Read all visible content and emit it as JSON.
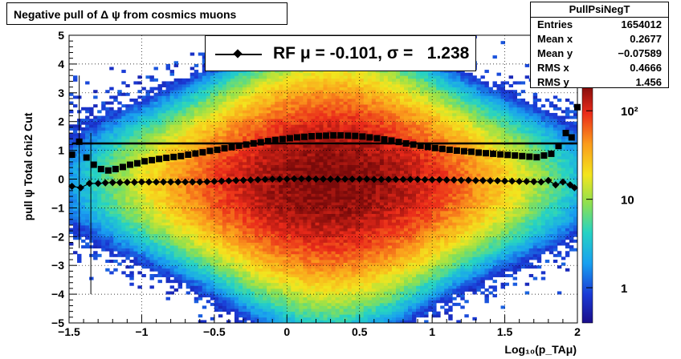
{
  "title": "Negative pull of Δ ψ from cosmics muons",
  "stats": {
    "name": "PullPsiNegT",
    "rows": [
      {
        "label": "Entries",
        "value": "1654012"
      },
      {
        "label": "Mean x",
        "value": "0.2677"
      },
      {
        "label": "Mean y",
        "value": "−0.07589"
      },
      {
        "label": "RMS x",
        "value": "0.4666"
      },
      {
        "label": "RMS y",
        "value": "1.456"
      }
    ]
  },
  "legend": {
    "label": "RF μ = -0.101, σ =   1.238"
  },
  "colorbar": {
    "min": 0.4,
    "max": 200,
    "log": true,
    "tick_labels": [
      "1",
      "10",
      "10²"
    ]
  },
  "chart_data": {
    "type": "heatmap",
    "xlabel": "Log₁₀(p_TAμ)",
    "ylabel": "pull ψ   Total chi2 Cut",
    "xlim": [
      -1.5,
      2
    ],
    "ylim": [
      -5,
      5
    ],
    "x_ticks": [
      "−1.5",
      "−1",
      "−0.5",
      "0",
      "0.5",
      "1",
      "1.5",
      "2"
    ],
    "y_ticks": [
      "−5",
      "−4",
      "−3",
      "−2",
      "−1",
      "0",
      "1",
      "2",
      "3",
      "4",
      "5"
    ],
    "grid": true,
    "density": {
      "center_x": 0.3,
      "rms_x": 0.47,
      "center_y": -0.08,
      "rms_y": 1.46,
      "peak_count": 200
    },
    "series": [
      {
        "name": "RF",
        "marker": "diamond",
        "x": [
          -1.48,
          -1.42,
          -1.36,
          -1.3,
          -1.25,
          -1.2,
          -1.15,
          -1.1,
          -1.05,
          -1.0,
          -0.95,
          -0.9,
          -0.85,
          -0.8,
          -0.75,
          -0.7,
          -0.65,
          -0.6,
          -0.55,
          -0.5,
          -0.45,
          -0.4,
          -0.35,
          -0.3,
          -0.25,
          -0.2,
          -0.15,
          -0.1,
          -0.05,
          0.0,
          0.05,
          0.1,
          0.15,
          0.2,
          0.25,
          0.3,
          0.35,
          0.4,
          0.45,
          0.5,
          0.55,
          0.6,
          0.65,
          0.7,
          0.75,
          0.8,
          0.85,
          0.9,
          0.95,
          1.0,
          1.05,
          1.1,
          1.15,
          1.2,
          1.25,
          1.3,
          1.35,
          1.4,
          1.45,
          1.5,
          1.55,
          1.6,
          1.65,
          1.7,
          1.75,
          1.8,
          1.85,
          1.9,
          1.95,
          1.98
        ],
        "y": [
          -0.25,
          -0.3,
          -0.15,
          -0.15,
          -0.13,
          -0.12,
          -0.12,
          -0.11,
          -0.11,
          -0.1,
          -0.1,
          -0.1,
          -0.1,
          -0.1,
          -0.1,
          -0.1,
          -0.1,
          -0.1,
          -0.09,
          -0.08,
          -0.07,
          -0.06,
          -0.05,
          -0.04,
          -0.03,
          -0.02,
          -0.01,
          0.0,
          0.0,
          0.0,
          0.01,
          0.01,
          0.01,
          0.0,
          0.0,
          0.0,
          0.0,
          0.0,
          0.0,
          0.0,
          0.0,
          -0.01,
          -0.01,
          -0.01,
          -0.01,
          -0.01,
          -0.01,
          -0.01,
          -0.02,
          -0.02,
          -0.02,
          -0.03,
          -0.03,
          -0.04,
          -0.04,
          -0.05,
          -0.05,
          -0.06,
          -0.06,
          -0.07,
          -0.07,
          -0.08,
          -0.08,
          -0.09,
          -0.1,
          -0.05,
          -0.2,
          -0.1,
          -0.2,
          -0.3
        ]
      },
      {
        "name": "",
        "marker": "square",
        "x": [
          -1.48,
          -1.43,
          -1.38,
          -1.33,
          -1.28,
          -1.23,
          -1.18,
          -1.13,
          -1.08,
          -1.03,
          -0.98,
          -0.93,
          -0.88,
          -0.83,
          -0.78,
          -0.73,
          -0.68,
          -0.63,
          -0.58,
          -0.53,
          -0.48,
          -0.43,
          -0.38,
          -0.33,
          -0.28,
          -0.23,
          -0.18,
          -0.13,
          -0.08,
          -0.03,
          0.02,
          0.07,
          0.12,
          0.17,
          0.22,
          0.27,
          0.32,
          0.37,
          0.42,
          0.47,
          0.52,
          0.57,
          0.62,
          0.67,
          0.72,
          0.77,
          0.82,
          0.87,
          0.92,
          0.97,
          1.02,
          1.07,
          1.12,
          1.17,
          1.22,
          1.27,
          1.32,
          1.37,
          1.42,
          1.47,
          1.52,
          1.57,
          1.62,
          1.67,
          1.72,
          1.77,
          1.82,
          1.87,
          1.92,
          1.96,
          2.0
        ],
        "y": [
          0.85,
          1.3,
          0.75,
          0.5,
          0.35,
          0.3,
          0.35,
          0.42,
          0.5,
          0.55,
          0.62,
          0.66,
          0.7,
          0.74,
          0.77,
          0.8,
          0.85,
          0.89,
          0.93,
          0.98,
          1.02,
          1.07,
          1.11,
          1.16,
          1.2,
          1.24,
          1.28,
          1.32,
          1.36,
          1.39,
          1.42,
          1.45,
          1.47,
          1.49,
          1.5,
          1.51,
          1.52,
          1.52,
          1.51,
          1.5,
          1.48,
          1.45,
          1.42,
          1.38,
          1.34,
          1.29,
          1.24,
          1.2,
          1.16,
          1.12,
          1.08,
          1.05,
          1.02,
          0.99,
          0.97,
          0.95,
          0.92,
          0.9,
          0.88,
          0.86,
          0.84,
          0.82,
          0.8,
          0.78,
          0.76,
          0.82,
          0.88,
          1.15,
          1.6,
          1.45,
          2.5
        ]
      }
    ],
    "fit_line": {
      "y": 1.238,
      "x_range": [
        -1.48,
        2.0
      ]
    }
  }
}
